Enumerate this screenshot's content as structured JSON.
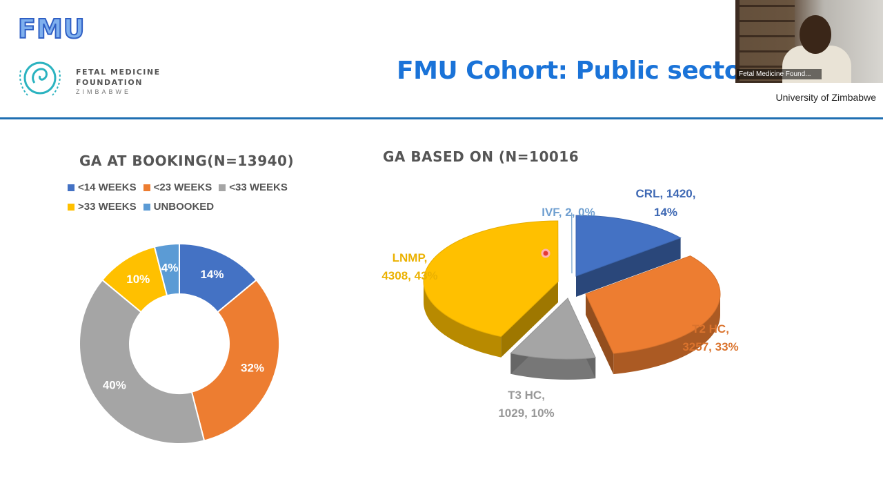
{
  "header": {
    "logo_text": "FMU",
    "foundation": {
      "line1": "FETAL MEDICINE",
      "line2": "FOUNDATION",
      "line3": "ZIMBABWE"
    },
    "slide_title": "FMU Cohort: Public sector"
  },
  "video": {
    "participant_name": "Fetal Medicine Found...",
    "caption": "University of Zimbabwe"
  },
  "chart_data": [
    {
      "type": "pie",
      "variant": "donut",
      "title": "GA AT BOOKING(N=13940)",
      "legend_position": "top",
      "series": [
        {
          "name": "<14 WEEKS",
          "value": 14,
          "label": "14%",
          "color": "#4472c4"
        },
        {
          "name": "<23 WEEKS",
          "value": 32,
          "label": "32%",
          "color": "#ed7d31"
        },
        {
          "name": "<33 WEEKS",
          "value": 40,
          "label": "40%",
          "color": "#a5a5a5"
        },
        {
          "name": ">33 WEEKS",
          "value": 10,
          "label": "10%",
          "color": "#ffc000"
        },
        {
          "name": "UNBOOKED",
          "value": 4,
          "label": "4%",
          "color": "#5b9bd5"
        }
      ]
    },
    {
      "type": "pie",
      "variant": "3d-exploded",
      "title": "GA BASED ON (N=10016",
      "series": [
        {
          "name": "CRL",
          "value": 1420,
          "percent": 14,
          "label_line1": "CRL, 1420,",
          "label_line2": "14%",
          "color": "#4472c4"
        },
        {
          "name": "T2 HC",
          "value": 3257,
          "percent": 33,
          "label_line1": "T2 HC,",
          "label_line2": "3257, 33%",
          "color": "#ed7d31"
        },
        {
          "name": "T3 HC",
          "value": 1029,
          "percent": 10,
          "label_line1": "T3 HC,",
          "label_line2": "1029, 10%",
          "color": "#a5a5a5"
        },
        {
          "name": "LNMP",
          "value": 4308,
          "percent": 43,
          "label_line1": "LNMP,",
          "label_line2": "4308, 43%",
          "color": "#ffc000"
        },
        {
          "name": "IVF",
          "value": 2,
          "percent": 0,
          "label_line1": "IVF, 2, 0%",
          "label_line2": "",
          "color": "#5b9bd5"
        }
      ]
    }
  ]
}
